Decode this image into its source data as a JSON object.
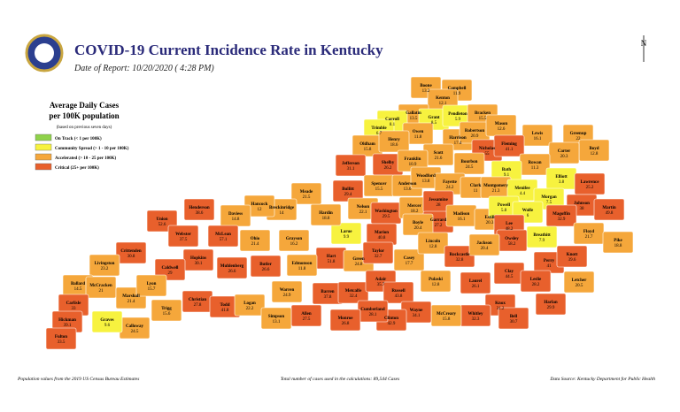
{
  "header": {
    "title": "COVID-19 Current Incidence Rate in Kentucky",
    "subtitle": "Date of Report: 10/20/2020 ( 4:28 PM)",
    "compass": "N"
  },
  "legend": {
    "title_1": "Average Daily Cases",
    "title_2": "per 100K population",
    "note": "(based on previous seven days)",
    "items": [
      {
        "name": "On Track (< 1 per 100K)",
        "color": "#8fd24a"
      },
      {
        "name": "Community Spread (> 1 - 10 per 100K)",
        "color": "#f7f23f"
      },
      {
        "name": "Accelerated (> 10 - 25 per 100K)",
        "color": "#f5a73b"
      },
      {
        "name": "Critical (25+ per 100K)",
        "color": "#e8602c"
      }
    ]
  },
  "counties": [
    {
      "name": "Boone",
      "value": 13.2,
      "color": "#f5a73b"
    },
    {
      "name": "Campbell",
      "value": 11.9,
      "color": "#f5a73b"
    },
    {
      "name": "Kenton",
      "value": 12.1,
      "color": "#f5a73b"
    },
    {
      "name": "Gallatin",
      "value": 13.5,
      "color": "#f5a73b"
    },
    {
      "name": "Grant",
      "value": 8.5,
      "color": "#f7f23f"
    },
    {
      "name": "Pendleton",
      "value": 5.9,
      "color": "#f7f23f"
    },
    {
      "name": "Bracken",
      "value": 15.5,
      "color": "#f5a73b"
    },
    {
      "name": "Carroll",
      "value": 8.1,
      "color": "#f7f23f"
    },
    {
      "name": "Trimble",
      "value": 6.7,
      "color": "#f7f23f"
    },
    {
      "name": "Owen",
      "value": 11.8,
      "color": "#f5a73b"
    },
    {
      "name": "Harrison",
      "value": 17.4,
      "color": "#f5a73b"
    },
    {
      "name": "Robertson",
      "value": 20.9,
      "color": "#f5a73b"
    },
    {
      "name": "Mason",
      "value": 12.6,
      "color": "#f5a73b"
    },
    {
      "name": "Lewis",
      "value": 16.1,
      "color": "#f5a73b"
    },
    {
      "name": "Greenup",
      "value": 22,
      "color": "#f5a73b"
    },
    {
      "name": "Oldham",
      "value": 15.8,
      "color": "#f5a73b"
    },
    {
      "name": "Henry",
      "value": 18.6,
      "color": "#f5a73b"
    },
    {
      "name": "Scott",
      "value": 21.6,
      "color": "#f5a73b"
    },
    {
      "name": "Nicholas",
      "value": 55,
      "color": "#e8602c"
    },
    {
      "name": "Fleming",
      "value": 41.1,
      "color": "#e8602c"
    },
    {
      "name": "Boyd",
      "value": 12.8,
      "color": "#f5a73b"
    },
    {
      "name": "Carter",
      "value": 20.3,
      "color": "#f5a73b"
    },
    {
      "name": "Jefferson",
      "value": 31.1,
      "color": "#e8602c"
    },
    {
      "name": "Shelby",
      "value": 26.2,
      "color": "#e8602c"
    },
    {
      "name": "Franklin",
      "value": 10.9,
      "color": "#f5a73b"
    },
    {
      "name": "Bourbon",
      "value": 24.5,
      "color": "#f5a73b"
    },
    {
      "name": "Rowan",
      "value": 11.3,
      "color": "#f5a73b"
    },
    {
      "name": "Bath",
      "value": 9.1,
      "color": "#f7f23f"
    },
    {
      "name": "Elliott",
      "value": 3.8,
      "color": "#f7f23f"
    },
    {
      "name": "Lawrence",
      "value": 25.2,
      "color": "#e8602c"
    },
    {
      "name": "Spencer",
      "value": 15.5,
      "color": "#f5a73b"
    },
    {
      "name": "Anderson",
      "value": 13.6,
      "color": "#f5a73b"
    },
    {
      "name": "Woodford",
      "value": 13.8,
      "color": "#f5a73b"
    },
    {
      "name": "Fayette",
      "value": 24.2,
      "color": "#f5a73b"
    },
    {
      "name": "Clark",
      "value": 11,
      "color": "#f5a73b"
    },
    {
      "name": "Montgomery",
      "value": 21.3,
      "color": "#f5a73b"
    },
    {
      "name": "Menifee",
      "value": 4.4,
      "color": "#f7f23f"
    },
    {
      "name": "Morgan",
      "value": 7.5,
      "color": "#f7f23f"
    },
    {
      "name": "Johnson",
      "value": 38,
      "color": "#e8602c"
    },
    {
      "name": "Martin",
      "value": 49.8,
      "color": "#e8602c"
    },
    {
      "name": "Bullitt",
      "value": 29.4,
      "color": "#e8602c"
    },
    {
      "name": "Nelson",
      "value": 22.1,
      "color": "#f5a73b"
    },
    {
      "name": "Washington",
      "value": 29.5,
      "color": "#e8602c"
    },
    {
      "name": "Mercer",
      "value": 18.2,
      "color": "#f5a73b"
    },
    {
      "name": "Jessamine",
      "value": 28,
      "color": "#e8602c"
    },
    {
      "name": "Garrard",
      "value": 27.2,
      "color": "#e8602c"
    },
    {
      "name": "Madison",
      "value": 16.1,
      "color": "#f5a73b"
    },
    {
      "name": "Estill",
      "value": 20.3,
      "color": "#f5a73b"
    },
    {
      "name": "Powell",
      "value": 5.8,
      "color": "#f7f23f"
    },
    {
      "name": "Wolfe",
      "value": 6,
      "color": "#f7f23f"
    },
    {
      "name": "Magoffin",
      "value": 32.9,
      "color": "#e8602c"
    },
    {
      "name": "Floyd",
      "value": 21.7,
      "color": "#f5a73b"
    },
    {
      "name": "Pike",
      "value": 18.8,
      "color": "#f5a73b"
    },
    {
      "name": "Lee",
      "value": 48.2,
      "color": "#e8602c"
    },
    {
      "name": "Breathitt",
      "value": 7.9,
      "color": "#f7f23f"
    },
    {
      "name": "Owsley",
      "value": 58.2,
      "color": "#e8602c"
    },
    {
      "name": "Boyle",
      "value": 20.4,
      "color": "#f5a73b"
    },
    {
      "name": "Marion",
      "value": 40.8,
      "color": "#e8602c"
    },
    {
      "name": "Larue",
      "value": 9.9,
      "color": "#f7f23f"
    },
    {
      "name": "Hardin",
      "value": 18.8,
      "color": "#f5a73b"
    },
    {
      "name": "Meade",
      "value": 21.5,
      "color": "#f5a73b"
    },
    {
      "name": "Breckinridge",
      "value": 14,
      "color": "#f5a73b"
    },
    {
      "name": "Hancock",
      "value": 12,
      "color": "#f5a73b"
    },
    {
      "name": "Daviess",
      "value": 14.8,
      "color": "#f5a73b"
    },
    {
      "name": "Henderson",
      "value": 38.6,
      "color": "#e8602c"
    },
    {
      "name": "Union",
      "value": 52.6,
      "color": "#e8602c"
    },
    {
      "name": "Webster",
      "value": 37.5,
      "color": "#e8602c"
    },
    {
      "name": "McLean",
      "value": 57.1,
      "color": "#e8602c"
    },
    {
      "name": "Ohio",
      "value": 21.4,
      "color": "#f5a73b"
    },
    {
      "name": "Grayson",
      "value": 16.2,
      "color": "#f5a73b"
    },
    {
      "name": "Hart",
      "value": 51.8,
      "color": "#e8602c"
    },
    {
      "name": "Green",
      "value": 24.8,
      "color": "#f5a73b"
    },
    {
      "name": "Taylor",
      "value": 32.7,
      "color": "#e8602c"
    },
    {
      "name": "Casey",
      "value": 17.7,
      "color": "#f5a73b"
    },
    {
      "name": "Lincoln",
      "value": 12.8,
      "color": "#f5a73b"
    },
    {
      "name": "Rockcastle",
      "value": 32.8,
      "color": "#e8602c"
    },
    {
      "name": "Jackson",
      "value": 20.4,
      "color": "#f5a73b"
    },
    {
      "name": "Clay",
      "value": 44.5,
      "color": "#e8602c"
    },
    {
      "name": "Perry",
      "value": 41,
      "color": "#e8602c"
    },
    {
      "name": "Knott",
      "value": 39.6,
      "color": "#e8602c"
    },
    {
      "name": "Letcher",
      "value": 20.5,
      "color": "#f5a73b"
    },
    {
      "name": "Leslie",
      "value": 28.2,
      "color": "#e8602c"
    },
    {
      "name": "Harlan",
      "value": 29.9,
      "color": "#e8602c"
    },
    {
      "name": "Crittenden",
      "value": 30.8,
      "color": "#e8602c"
    },
    {
      "name": "Livingston",
      "value": 23.2,
      "color": "#f5a73b"
    },
    {
      "name": "Hopkins",
      "value": 30.1,
      "color": "#e8602c"
    },
    {
      "name": "Caldwell",
      "value": 29,
      "color": "#e8602c"
    },
    {
      "name": "Muhlenberg",
      "value": 26.6,
      "color": "#e8602c"
    },
    {
      "name": "Butler",
      "value": 26.6,
      "color": "#e8602c"
    },
    {
      "name": "Edmonson",
      "value": 11.8,
      "color": "#f5a73b"
    },
    {
      "name": "Ballard",
      "value": 14.5,
      "color": "#f5a73b"
    },
    {
      "name": "McCracken",
      "value": 21,
      "color": "#f5a73b"
    },
    {
      "name": "Marshall",
      "value": 21.4,
      "color": "#f5a73b"
    },
    {
      "name": "Lyon",
      "value": 15.7,
      "color": "#f5a73b"
    },
    {
      "name": "Christian",
      "value": 27.8,
      "color": "#e8602c"
    },
    {
      "name": "Todd",
      "value": 41.8,
      "color": "#e8602c"
    },
    {
      "name": "Logan",
      "value": 22.2,
      "color": "#f5a73b"
    },
    {
      "name": "Warren",
      "value": 24.9,
      "color": "#f5a73b"
    },
    {
      "name": "Barren",
      "value": 37.8,
      "color": "#e8602c"
    },
    {
      "name": "Metcalfe",
      "value": 32.4,
      "color": "#e8602c"
    },
    {
      "name": "Adair",
      "value": 35.7,
      "color": "#e8602c"
    },
    {
      "name": "Russell",
      "value": 43.8,
      "color": "#e8602c"
    },
    {
      "name": "Pulaski",
      "value": 12.8,
      "color": "#f5a73b"
    },
    {
      "name": "Laurel",
      "value": 26.1,
      "color": "#e8602c"
    },
    {
      "name": "Knox",
      "value": 31.2,
      "color": "#e8602c"
    },
    {
      "name": "Bell",
      "value": 30.7,
      "color": "#e8602c"
    },
    {
      "name": "Whitley",
      "value": 32.3,
      "color": "#e8602c"
    },
    {
      "name": "McCreary",
      "value": 15.8,
      "color": "#f5a73b"
    },
    {
      "name": "Wayne",
      "value": 34.1,
      "color": "#e8602c"
    },
    {
      "name": "Clinton",
      "value": 42.9,
      "color": "#e8602c"
    },
    {
      "name": "Cumberland",
      "value": 28.1,
      "color": "#e8602c"
    },
    {
      "name": "Monroe",
      "value": 26.8,
      "color": "#e8602c"
    },
    {
      "name": "Allen",
      "value": 27.5,
      "color": "#e8602c"
    },
    {
      "name": "Simpson",
      "value": 13.1,
      "color": "#f5a73b"
    },
    {
      "name": "Trigg",
      "value": 15.6,
      "color": "#f5a73b"
    },
    {
      "name": "Calloway",
      "value": 24.5,
      "color": "#f5a73b"
    },
    {
      "name": "Graves",
      "value": 9.6,
      "color": "#f7f23f"
    },
    {
      "name": "Carlisle",
      "value": 33,
      "color": "#e8602c"
    },
    {
      "name": "Hickman",
      "value": 39.1,
      "color": "#e8602c"
    },
    {
      "name": "Fulton",
      "value": 33.5,
      "color": "#e8602c"
    }
  ],
  "footer": {
    "left": "Population values from the 2019 US Census Bureau Estimates",
    "center": "Total number of cases used in the calculations: 89,544 Cases",
    "right": "Data Source: Kentucky Department for Public Health"
  }
}
